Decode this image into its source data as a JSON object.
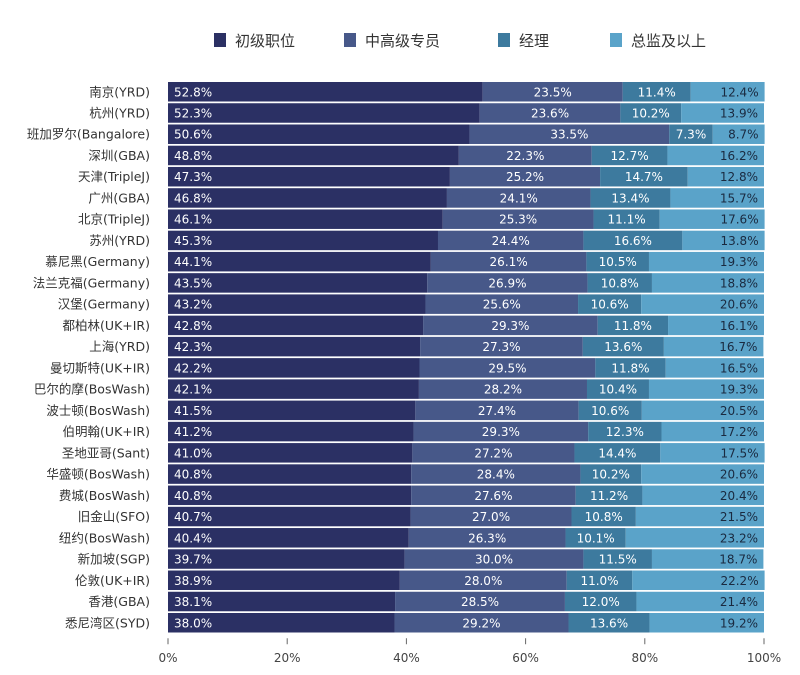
{
  "chart_data": {
    "type": "bar",
    "orientation": "horizontal",
    "stacked": true,
    "legend_position": "top",
    "grid": false,
    "xlim": [
      0,
      100
    ],
    "x_ticks": [
      "0%",
      "20%",
      "40%",
      "60%",
      "80%",
      "100%"
    ],
    "value_suffix": "%",
    "categories": [
      "南京(YRD)",
      "杭州(YRD)",
      "班加罗尔(Bangalore)",
      "深圳(GBA)",
      "天津(TripleJ)",
      "广州(GBA)",
      "北京(TripleJ)",
      "苏州(YRD)",
      "慕尼黑(Germany)",
      "法兰克福(Germany)",
      "汉堡(Germany)",
      "都柏林(UK+IR)",
      "上海(YRD)",
      "曼切斯特(UK+IR)",
      "巴尔的摩(BosWash)",
      "波士顿(BosWash)",
      "伯明翰(UK+IR)",
      "圣地亚哥(Sant)",
      "华盛顿(BosWash)",
      "费城(BosWash)",
      "旧金山(SFO)",
      "纽约(BosWash)",
      "新加坡(SGP)",
      "伦敦(UK+IR)",
      "香港(GBA)",
      "悉尼湾区(SYD)"
    ],
    "series": [
      {
        "name": "初级职位",
        "color": "#2b3064",
        "label_color": "#ffffff",
        "values": [
          52.8,
          52.3,
          50.6,
          48.8,
          47.3,
          46.8,
          46.1,
          45.3,
          44.1,
          43.5,
          43.2,
          42.8,
          42.3,
          42.2,
          42.1,
          41.5,
          41.2,
          41.0,
          40.8,
          40.8,
          40.7,
          40.4,
          39.7,
          38.9,
          38.1,
          38.0
        ]
      },
      {
        "name": "中高级专员",
        "color": "#475889",
        "label_color": "#ffffff",
        "values": [
          23.5,
          23.6,
          33.5,
          22.3,
          25.2,
          24.1,
          25.3,
          24.4,
          26.1,
          26.9,
          25.6,
          29.3,
          27.3,
          29.5,
          28.2,
          27.4,
          29.3,
          27.2,
          28.4,
          27.6,
          27.0,
          26.3,
          30.0,
          28.0,
          28.5,
          29.2
        ]
      },
      {
        "name": "经理",
        "color": "#3d7a9e",
        "label_color": "#ffffff",
        "values": [
          11.4,
          10.2,
          7.3,
          12.7,
          14.7,
          13.4,
          11.1,
          16.6,
          10.5,
          10.8,
          10.6,
          11.8,
          13.6,
          11.8,
          10.4,
          10.6,
          12.3,
          14.4,
          10.2,
          11.2,
          10.8,
          10.1,
          11.5,
          11.0,
          12.0,
          13.6
        ]
      },
      {
        "name": "总监及以上",
        "color": "#5aa3c9",
        "label_color": "#1a2a40",
        "values": [
          12.4,
          13.9,
          8.7,
          16.2,
          12.8,
          15.7,
          17.6,
          13.8,
          19.3,
          18.8,
          20.6,
          16.1,
          16.7,
          16.5,
          19.3,
          20.5,
          17.2,
          17.5,
          20.6,
          20.4,
          21.5,
          23.2,
          18.7,
          22.2,
          21.4,
          19.2
        ]
      }
    ]
  }
}
